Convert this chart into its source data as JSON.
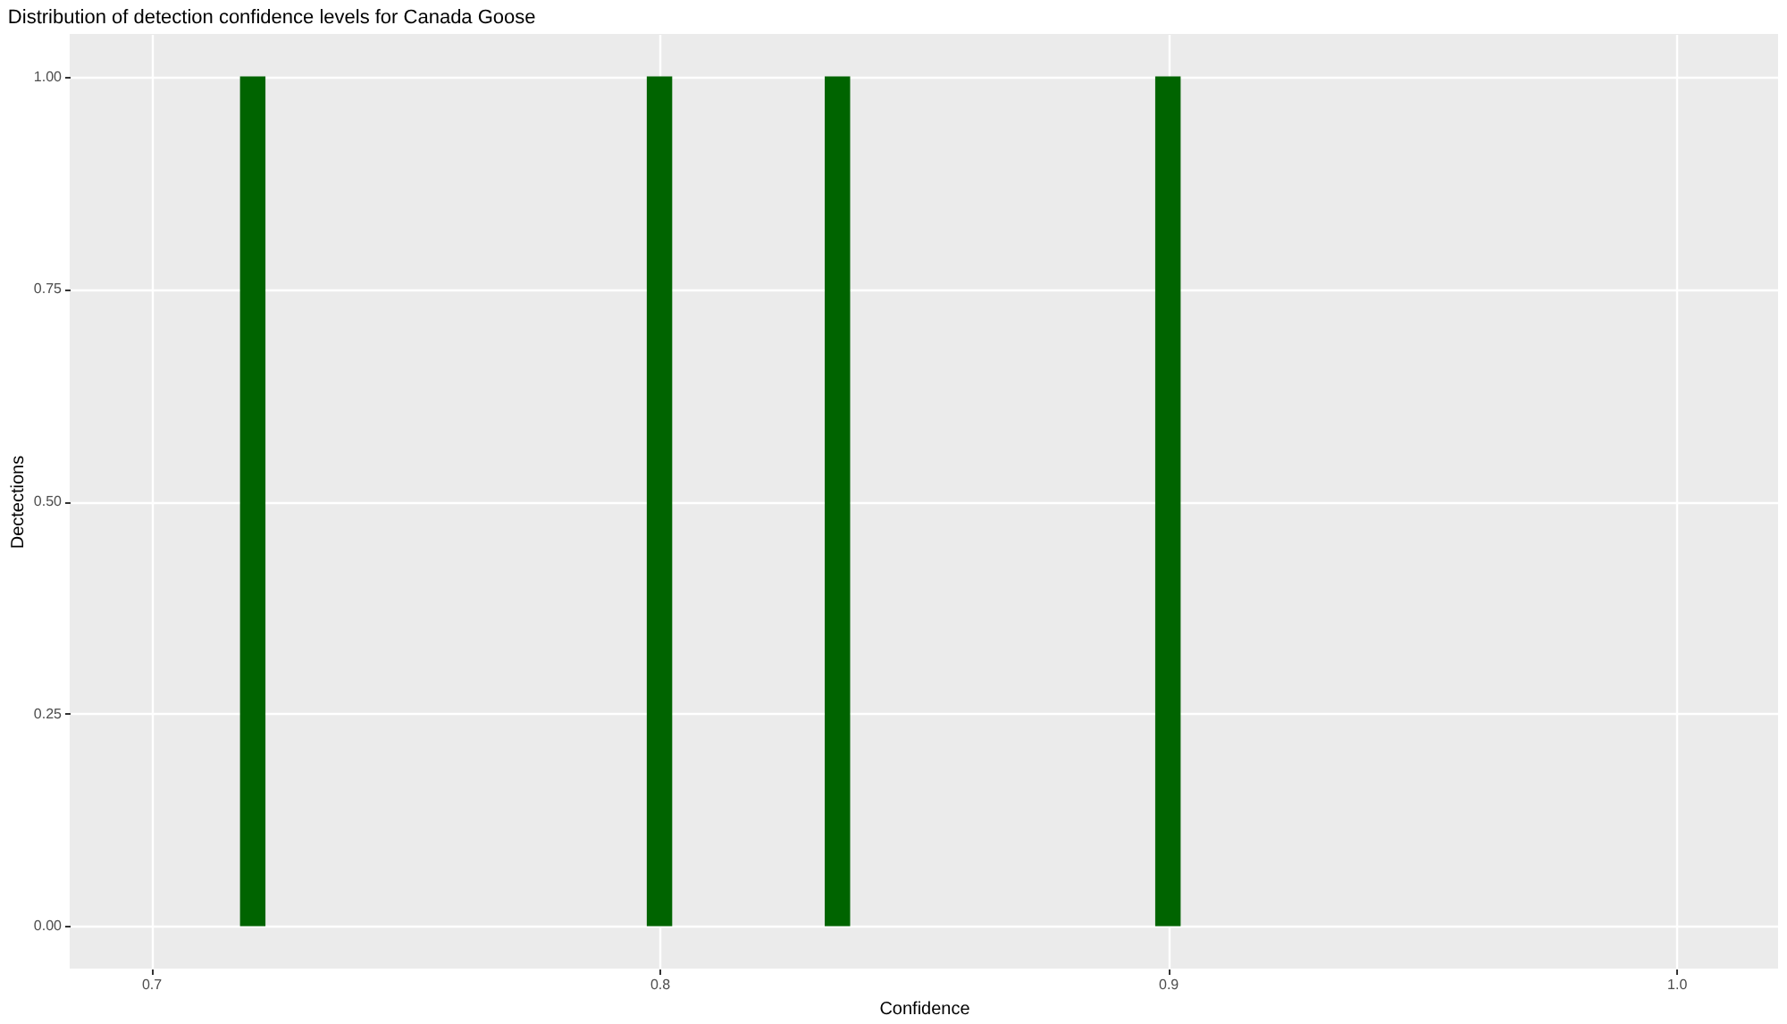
{
  "chart_data": {
    "type": "histogram",
    "title": "Distribution of detection confidence levels for Canada Goose",
    "xlabel": "Confidence",
    "ylabel": "Dectections",
    "bins": [
      0.7175,
      0.7225,
      0.7275,
      0.7325,
      0.7375,
      0.7425,
      0.7475,
      0.7525,
      0.7575,
      0.7625,
      0.7675,
      0.7725,
      0.7775,
      0.7825,
      0.7875,
      0.7925,
      0.7975,
      0.8025,
      0.8075,
      0.8125,
      0.8175,
      0.8225,
      0.8275,
      0.8325,
      0.8375,
      0.8425,
      0.8475,
      0.8525,
      0.8575,
      0.8625,
      0.8675,
      0.8725,
      0.8775,
      0.8825,
      0.8875,
      0.8925,
      0.8975,
      0.9025
    ],
    "values": [
      1,
      0,
      0,
      0,
      0,
      0,
      0,
      0,
      0,
      0,
      0,
      0,
      0,
      0,
      0,
      0,
      1,
      0,
      0,
      0,
      0,
      0,
      0,
      1,
      0,
      0,
      0,
      0,
      0,
      0,
      0,
      0,
      0,
      0,
      0,
      0,
      1
    ],
    "color": "#006400",
    "xlim": [
      0.684,
      1.02
    ],
    "xticks": [
      0.7,
      0.8,
      0.9,
      {
        "value": 1,
        "label": "1.0"
      }
    ],
    "ylim": [
      -0.05,
      1.05
    ],
    "yticks": [
      {
        "value": 0,
        "label": "0.00"
      },
      {
        "value": 0.25,
        "label": "0.25"
      },
      {
        "value": 0.5,
        "label": "0.50"
      },
      {
        "value": 0.75,
        "label": "0.75"
      },
      {
        "value": 1,
        "label": "1.00"
      }
    ],
    "grid": true
  }
}
